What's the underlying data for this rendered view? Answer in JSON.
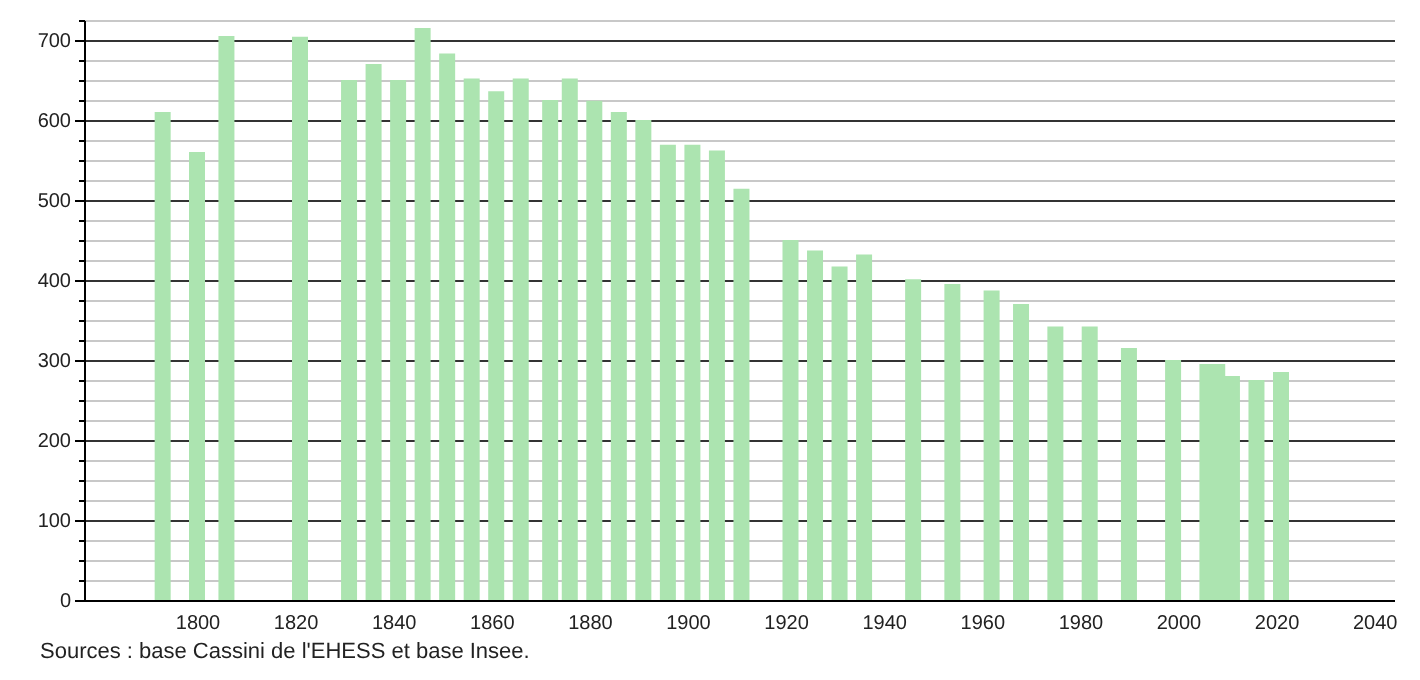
{
  "chart_data": {
    "type": "bar",
    "x": [
      1793,
      1800,
      1806,
      1821,
      1831,
      1836,
      1841,
      1846,
      1851,
      1856,
      1861,
      1866,
      1872,
      1876,
      1881,
      1886,
      1891,
      1896,
      1901,
      1906,
      1911,
      1921,
      1926,
      1931,
      1936,
      1946,
      1954,
      1962,
      1968,
      1975,
      1982,
      1990,
      1999,
      2006,
      2008,
      2011,
      2016,
      2021
    ],
    "values": [
      610,
      560,
      705,
      704,
      650,
      670,
      650,
      715,
      683,
      652,
      636,
      652,
      625,
      652,
      624,
      610,
      600,
      569,
      569,
      562,
      514,
      450,
      437,
      417,
      432,
      401,
      395,
      387,
      370,
      342,
      342,
      315,
      300,
      295,
      295,
      280,
      275,
      285
    ],
    "color": "#ace4b0",
    "xlim": [
      1779,
      2042
    ],
    "xticks": [
      1800,
      1820,
      1840,
      1860,
      1880,
      1900,
      1920,
      1940,
      1960,
      1980,
      2000,
      2020,
      2040
    ],
    "ylim": [
      0,
      725
    ],
    "yticks": [
      0,
      {
        "value": 25,
        "label": null
      },
      {
        "value": 50,
        "label": null
      },
      {
        "value": 75,
        "label": null
      },
      100,
      {
        "value": 125,
        "label": null
      },
      {
        "value": 150,
        "label": null
      },
      {
        "value": 175,
        "label": null
      },
      200,
      {
        "value": 225,
        "label": null
      },
      {
        "value": 250,
        "label": null
      },
      {
        "value": 275,
        "label": null
      },
      300,
      {
        "value": 325,
        "label": null
      },
      {
        "value": 350,
        "label": null
      },
      {
        "value": 375,
        "label": null
      },
      400,
      {
        "value": 425,
        "label": null
      },
      {
        "value": 450,
        "label": null
      },
      {
        "value": 475,
        "label": null
      },
      500,
      {
        "value": 525,
        "label": null
      },
      {
        "value": 550,
        "label": null
      },
      {
        "value": 575,
        "label": null
      },
      600,
      {
        "value": 625,
        "label": null
      },
      {
        "value": 650,
        "label": null
      },
      {
        "value": 675,
        "label": null
      },
      700,
      {
        "value": 725,
        "label": null
      }
    ],
    "grid": "y",
    "annotations": [
      "Sources : base Cassini de l'EHESS et base Insee."
    ]
  }
}
